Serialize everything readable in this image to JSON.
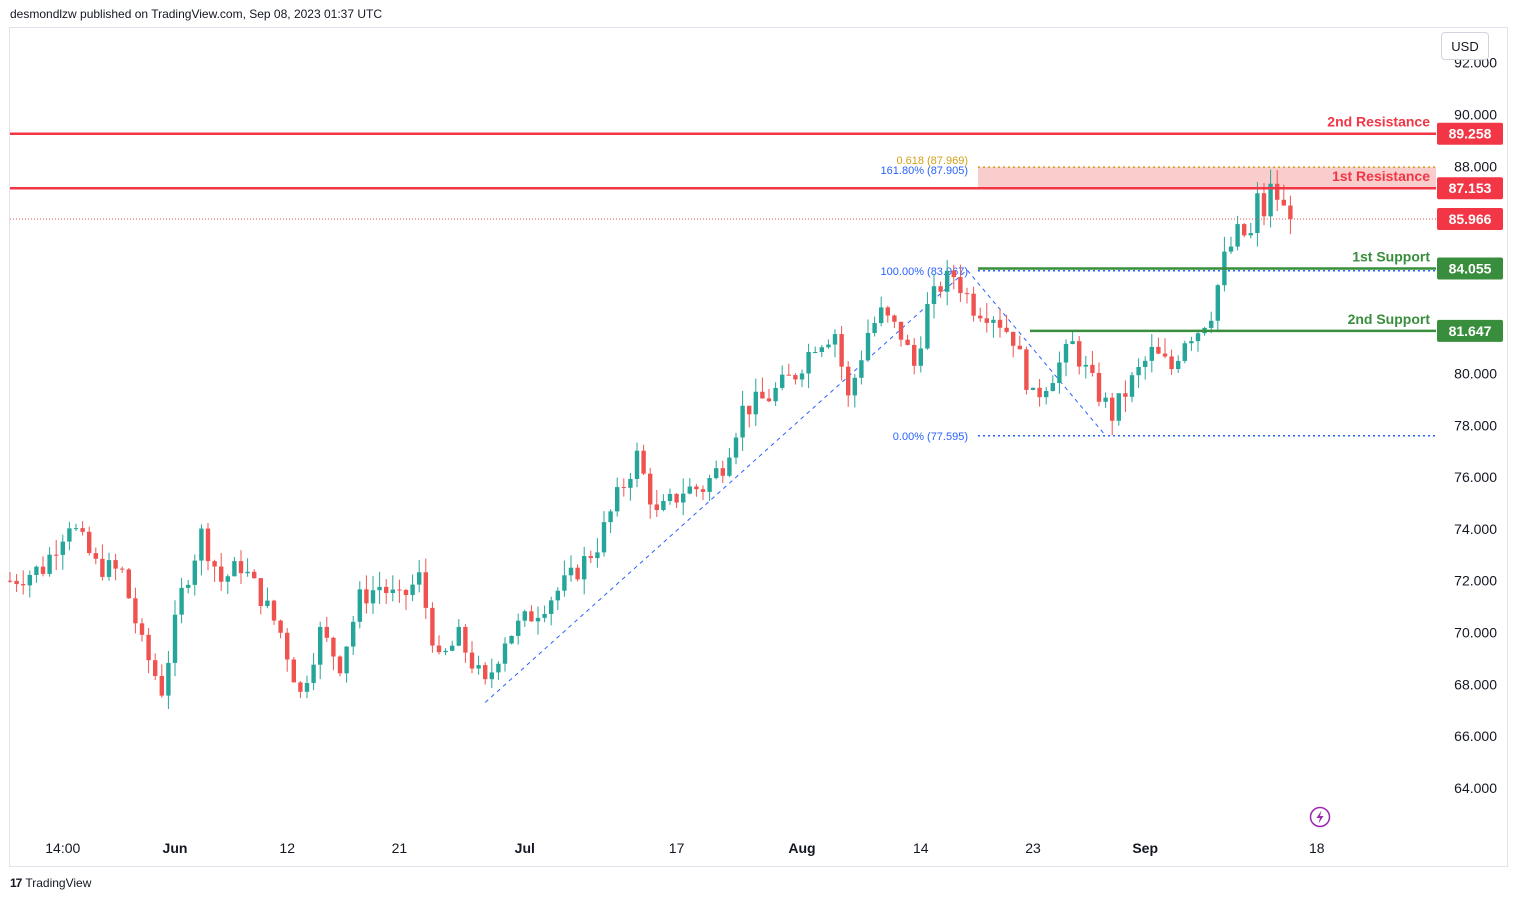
{
  "header": {
    "text": "desmondlzw published on TradingView.com, Sep 08, 2023 01:37 UTC"
  },
  "footer": {
    "brand": "TradingView",
    "logo": "tradingview-logo"
  },
  "currency_button": {
    "label": "USD"
  },
  "colors": {
    "up": "#26a69a",
    "down": "#ef5350",
    "resistance": "#f23645",
    "support": "#388e3c",
    "fib_line": "#2962ff",
    "fib_label": "#2962ff",
    "fib_gold": "#d4a017",
    "zone": "#f8bcbc",
    "axis_text": "#131722"
  },
  "chart_data": {
    "type": "candlestick",
    "symbol_currency": "USD",
    "y_axis": {
      "range": [
        62.5,
        93.0
      ],
      "ticks": [
        "92.000",
        "90.000",
        "88.000",
        "80.000",
        "78.000",
        "76.000",
        "74.000",
        "72.000",
        "70.000",
        "68.000",
        "66.000",
        "64.000"
      ],
      "tick_values": [
        92,
        90,
        88,
        80,
        78,
        76,
        74,
        72,
        70,
        68,
        66,
        64
      ]
    },
    "x_axis": {
      "labels": [
        "14:00",
        "Jun",
        "12",
        "21",
        "Jul",
        "17",
        "Aug",
        "14",
        "23",
        "Sep",
        "18"
      ],
      "label_bold": [
        false,
        true,
        false,
        false,
        true,
        false,
        true,
        false,
        false,
        true,
        false
      ],
      "label_index": [
        8,
        25,
        42,
        59,
        78,
        101,
        120,
        138,
        155,
        172,
        198
      ]
    },
    "price_levels": [
      {
        "name": "2nd Resistance",
        "value": 89.258,
        "label": "89.258",
        "kind": "resistance"
      },
      {
        "name": "1st Resistance",
        "value": 87.153,
        "label": "87.153",
        "kind": "resistance"
      },
      {
        "name": "1st Support",
        "value": 84.055,
        "label": "84.055",
        "kind": "support"
      },
      {
        "name": "2nd Support",
        "value": 81.647,
        "label": "81.647",
        "kind": "support"
      }
    ],
    "last_price": {
      "value": 85.966,
      "label": "85.966"
    },
    "fibonacci": {
      "levels": [
        {
          "label": "100.00% (83.967)",
          "value": 83.967
        },
        {
          "label": "0.00% (77.595)",
          "value": 77.595
        },
        {
          "label": "161.80% (87.905)",
          "value": 87.905
        }
      ],
      "gold_level": {
        "label": "0.618 (87.969)",
        "value": 87.969
      },
      "resistance_zone": [
        87.15,
        87.97
      ]
    },
    "trend_path": [
      {
        "i": 72,
        "v": 67.3
      },
      {
        "i": 145,
        "v": 84.0
      },
      {
        "i": 166,
        "v": 77.6
      }
    ],
    "anchors": [
      {
        "i": 0,
        "v": 72.0
      },
      {
        "i": 5,
        "v": 72.5
      },
      {
        "i": 9,
        "v": 74.3
      },
      {
        "i": 13,
        "v": 72.6
      },
      {
        "i": 17,
        "v": 72.3
      },
      {
        "i": 20,
        "v": 69.5
      },
      {
        "i": 23,
        "v": 67.8
      },
      {
        "i": 26,
        "v": 71.5
      },
      {
        "i": 29,
        "v": 73.8
      },
      {
        "i": 32,
        "v": 72.0
      },
      {
        "i": 35,
        "v": 72.6
      },
      {
        "i": 38,
        "v": 71.4
      },
      {
        "i": 41,
        "v": 70.0
      },
      {
        "i": 44,
        "v": 67.6
      },
      {
        "i": 47,
        "v": 70.0
      },
      {
        "i": 50,
        "v": 68.8
      },
      {
        "i": 53,
        "v": 71.3
      },
      {
        "i": 56,
        "v": 71.8
      },
      {
        "i": 59,
        "v": 71.2
      },
      {
        "i": 62,
        "v": 72.1
      },
      {
        "i": 65,
        "v": 68.8
      },
      {
        "i": 68,
        "v": 69.8
      },
      {
        "i": 72,
        "v": 67.9
      },
      {
        "i": 75,
        "v": 69.8
      },
      {
        "i": 80,
        "v": 70.9
      },
      {
        "i": 85,
        "v": 72.1
      },
      {
        "i": 89,
        "v": 73.4
      },
      {
        "i": 92,
        "v": 75.2
      },
      {
        "i": 95,
        "v": 76.8
      },
      {
        "i": 98,
        "v": 74.5
      },
      {
        "i": 102,
        "v": 75.5
      },
      {
        "i": 105,
        "v": 75.6
      },
      {
        "i": 108,
        "v": 76.5
      },
      {
        "i": 111,
        "v": 78.6
      },
      {
        "i": 115,
        "v": 79.1
      },
      {
        "i": 119,
        "v": 80.0
      },
      {
        "i": 122,
        "v": 81.2
      },
      {
        "i": 125,
        "v": 81.6
      },
      {
        "i": 127,
        "v": 79.0
      },
      {
        "i": 130,
        "v": 81.6
      },
      {
        "i": 132,
        "v": 82.3
      },
      {
        "i": 135,
        "v": 81.5
      },
      {
        "i": 137,
        "v": 80.3
      },
      {
        "i": 139,
        "v": 82.5
      },
      {
        "i": 141,
        "v": 83.4
      },
      {
        "i": 143,
        "v": 83.8
      },
      {
        "i": 146,
        "v": 82.6
      },
      {
        "i": 149,
        "v": 82.3
      },
      {
        "i": 152,
        "v": 81.4
      },
      {
        "i": 155,
        "v": 79.0
      },
      {
        "i": 158,
        "v": 80.0
      },
      {
        "i": 161,
        "v": 81.1
      },
      {
        "i": 164,
        "v": 79.6
      },
      {
        "i": 167,
        "v": 78.4
      },
      {
        "i": 170,
        "v": 79.7
      },
      {
        "i": 173,
        "v": 80.8
      },
      {
        "i": 176,
        "v": 80.2
      },
      {
        "i": 178,
        "v": 81.4
      },
      {
        "i": 180,
        "v": 81.7
      },
      {
        "i": 182,
        "v": 82.4
      },
      {
        "i": 184,
        "v": 84.4
      },
      {
        "i": 186,
        "v": 85.4
      },
      {
        "i": 188,
        "v": 85.3
      },
      {
        "i": 189,
        "v": 86.7
      },
      {
        "i": 190,
        "v": 86.2
      },
      {
        "i": 191,
        "v": 87.1
      },
      {
        "i": 192,
        "v": 86.8
      },
      {
        "i": 193,
        "v": 86.3
      },
      {
        "i": 194,
        "v": 85.97
      }
    ]
  }
}
